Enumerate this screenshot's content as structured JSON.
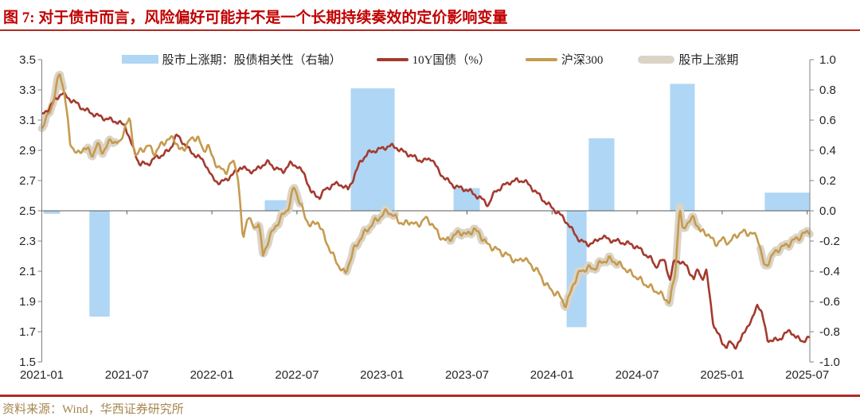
{
  "header": {
    "title": "图 7: 对于债市而言，风险偏好可能并不是一个长期持续奏效的定价影响变量"
  },
  "footer": {
    "source": "资料来源：Wind，华西证券研究所"
  },
  "colors": {
    "title_red": "#C00000",
    "rule_red": "#AE2B23",
    "bar_blue": "#AFD6F4",
    "bond_red": "#A43A2E",
    "csi_gold": "#C59B4F",
    "band_gray": "#DBD4C6",
    "source_gold": "#A6854F",
    "axis_line": "#808080",
    "zero_line": "#595959"
  },
  "chart_data": {
    "type": "mixed",
    "title": "",
    "x_axis": {
      "unit": "months since 2021-01",
      "tick_labels": [
        "2021-01",
        "2021-07",
        "2022-01",
        "2022-07",
        "2023-01",
        "2023-07",
        "2024-01",
        "2024-07",
        "2025-01",
        "2025-07"
      ],
      "tick_t": [
        0,
        6,
        12,
        18,
        24,
        30,
        36,
        42,
        48,
        54
      ],
      "t_max": 54.2,
      "grid": false
    },
    "left_axis": {
      "min": 1.5,
      "max": 3.5,
      "step": 0.2,
      "labels": [
        "3.5",
        "3.3",
        "3.1",
        "2.9",
        "2.7",
        "2.5",
        "2.3",
        "2.1",
        "1.9",
        "1.7",
        "1.5"
      ]
    },
    "right_axis": {
      "min": -1.0,
      "max": 1.0,
      "step": 0.2,
      "labels": [
        "1.0",
        "0.8",
        "0.6",
        "0.4",
        "0.2",
        "0.0",
        "-0.2",
        "-0.4",
        "-0.6",
        "-0.8",
        "-1.0"
      ]
    },
    "legend_position": "top-center",
    "series": [
      {
        "name": "股市上涨期：股债相关性（右轴）",
        "type": "bar",
        "axis": "right",
        "color": "#AFD6F4",
        "bars": [
          {
            "t0": 0.1,
            "t1": 1.3,
            "v": -0.02
          },
          {
            "t0": 3.33,
            "t1": 4.82,
            "v": -0.7
          },
          {
            "t0": 15.7,
            "t1": 17.44,
            "v": 0.07
          },
          {
            "t0": 21.77,
            "t1": 24.92,
            "v": 0.81
          },
          {
            "t0": 29.02,
            "t1": 30.93,
            "v": 0.15
          },
          {
            "t0": 37.0,
            "t1": 38.46,
            "v": -0.77
          },
          {
            "t0": 38.56,
            "t1": 40.42,
            "v": 0.48
          },
          {
            "t0": 44.3,
            "t1": 46.1,
            "v": 0.84
          },
          {
            "t0": 50.98,
            "t1": 54.18,
            "v": 0.12
          }
        ]
      },
      {
        "name": "10Y国债（%）",
        "type": "line",
        "axis": "left",
        "color": "#A43A2E",
        "points": [
          [
            0,
            3.13
          ],
          [
            0.5,
            3.18
          ],
          [
            1,
            3.24
          ],
          [
            1.4,
            3.28
          ],
          [
            1.8,
            3.25
          ],
          [
            2.3,
            3.22
          ],
          [
            3,
            3.17
          ],
          [
            3.9,
            3.13
          ],
          [
            4.5,
            3.11
          ],
          [
            5.3,
            3.09
          ],
          [
            5.9,
            3.06
          ],
          [
            6.4,
            2.92
          ],
          [
            6.9,
            2.81
          ],
          [
            7.5,
            2.81
          ],
          [
            8,
            2.85
          ],
          [
            8.5,
            2.87
          ],
          [
            9,
            2.9
          ],
          [
            9.5,
            3.0
          ],
          [
            10,
            2.95
          ],
          [
            10.5,
            2.89
          ],
          [
            11,
            2.86
          ],
          [
            11.5,
            2.82
          ],
          [
            12,
            2.72
          ],
          [
            12.6,
            2.68
          ],
          [
            13,
            2.71
          ],
          [
            13.5,
            2.74
          ],
          [
            14,
            2.79
          ],
          [
            14.5,
            2.77
          ],
          [
            15,
            2.76
          ],
          [
            15.5,
            2.8
          ],
          [
            16,
            2.82
          ],
          [
            16.5,
            2.78
          ],
          [
            17,
            2.76
          ],
          [
            17.5,
            2.81
          ],
          [
            18,
            2.8
          ],
          [
            18.6,
            2.73
          ],
          [
            19,
            2.62
          ],
          [
            19.6,
            2.59
          ],
          [
            20,
            2.64
          ],
          [
            20.5,
            2.67
          ],
          [
            21,
            2.68
          ],
          [
            21.6,
            2.64
          ],
          [
            22,
            2.72
          ],
          [
            22.5,
            2.83
          ],
          [
            23,
            2.88
          ],
          [
            23.5,
            2.9
          ],
          [
            24,
            2.91
          ],
          [
            24.5,
            2.93
          ],
          [
            25,
            2.92
          ],
          [
            25.5,
            2.89
          ],
          [
            26,
            2.87
          ],
          [
            26.5,
            2.84
          ],
          [
            27,
            2.83
          ],
          [
            27.5,
            2.85
          ],
          [
            28,
            2.76
          ],
          [
            28.5,
            2.71
          ],
          [
            29,
            2.67
          ],
          [
            29.5,
            2.65
          ],
          [
            30,
            2.64
          ],
          [
            30.5,
            2.61
          ],
          [
            31,
            2.58
          ],
          [
            31.5,
            2.54
          ],
          [
            32,
            2.63
          ],
          [
            32.5,
            2.66
          ],
          [
            33,
            2.69
          ],
          [
            33.5,
            2.7
          ],
          [
            34,
            2.7
          ],
          [
            34.5,
            2.66
          ],
          [
            35,
            2.61
          ],
          [
            35.5,
            2.56
          ],
          [
            36,
            2.52
          ],
          [
            36.5,
            2.48
          ],
          [
            37,
            2.43
          ],
          [
            37.5,
            2.36
          ],
          [
            38,
            2.3
          ],
          [
            38.5,
            2.28
          ],
          [
            39,
            2.29
          ],
          [
            39.5,
            2.33
          ],
          [
            40,
            2.31
          ],
          [
            40.5,
            2.3
          ],
          [
            41,
            2.29
          ],
          [
            41.5,
            2.28
          ],
          [
            42,
            2.26
          ],
          [
            42.5,
            2.22
          ],
          [
            43,
            2.18
          ],
          [
            43.3,
            2.13
          ],
          [
            43.7,
            2.17
          ],
          [
            44,
            2.16
          ],
          [
            44.3,
            2.04
          ],
          [
            44.6,
            2.16
          ],
          [
            45,
            2.17
          ],
          [
            45.5,
            2.13
          ],
          [
            46,
            2.05
          ],
          [
            46.3,
            2.11
          ],
          [
            46.6,
            2.05
          ],
          [
            46.9,
            2.1
          ],
          [
            47.1,
            1.95
          ],
          [
            47.4,
            1.74
          ],
          [
            48,
            1.63
          ],
          [
            48.3,
            1.6
          ],
          [
            48.6,
            1.63
          ],
          [
            48.9,
            1.6
          ],
          [
            49.3,
            1.64
          ],
          [
            49.7,
            1.73
          ],
          [
            50.1,
            1.77
          ],
          [
            50.5,
            1.89
          ],
          [
            50.8,
            1.82
          ],
          [
            51.2,
            1.65
          ],
          [
            51.6,
            1.64
          ],
          [
            52,
            1.65
          ],
          [
            52.4,
            1.68
          ],
          [
            52.8,
            1.71
          ],
          [
            53.2,
            1.66
          ],
          [
            53.7,
            1.64
          ],
          [
            54.2,
            1.66
          ]
        ]
      },
      {
        "name": "沪深300",
        "type": "line",
        "axis": "left",
        "color": "#C59B4F",
        "points": [
          [
            0,
            3.05
          ],
          [
            0.4,
            3.12
          ],
          [
            0.8,
            3.22
          ],
          [
            1.26,
            3.42
          ],
          [
            1.6,
            3.28
          ],
          [
            2,
            2.95
          ],
          [
            2.5,
            2.87
          ],
          [
            3,
            2.92
          ],
          [
            3.6,
            2.87
          ],
          [
            3.9,
            2.94
          ],
          [
            4.3,
            2.89
          ],
          [
            4.9,
            2.97
          ],
          [
            5.5,
            2.94
          ],
          [
            5.9,
            3.07
          ],
          [
            6.2,
            3.1
          ],
          [
            6.6,
            2.86
          ],
          [
            7,
            2.9
          ],
          [
            7.5,
            2.93
          ],
          [
            8,
            2.88
          ],
          [
            8.5,
            2.95
          ],
          [
            9,
            2.97
          ],
          [
            9.3,
            2.99
          ],
          [
            9.7,
            2.9
          ],
          [
            10,
            2.91
          ],
          [
            10.5,
            2.97
          ],
          [
            11,
            2.99
          ],
          [
            11.4,
            2.89
          ],
          [
            11.7,
            2.94
          ],
          [
            12,
            2.86
          ],
          [
            12.5,
            2.78
          ],
          [
            13,
            2.76
          ],
          [
            13.5,
            2.83
          ],
          [
            13.8,
            2.76
          ],
          [
            14.2,
            2.3
          ],
          [
            14.5,
            2.47
          ],
          [
            15,
            2.38
          ],
          [
            15.3,
            2.43
          ],
          [
            15.6,
            2.2
          ],
          [
            16,
            2.31
          ],
          [
            16.5,
            2.4
          ],
          [
            17,
            2.47
          ],
          [
            17.4,
            2.52
          ],
          [
            17.8,
            2.66
          ],
          [
            18.2,
            2.56
          ],
          [
            18.6,
            2.45
          ],
          [
            19,
            2.4
          ],
          [
            19.5,
            2.43
          ],
          [
            20,
            2.31
          ],
          [
            20.5,
            2.21
          ],
          [
            21,
            2.13
          ],
          [
            21.4,
            2.08
          ],
          [
            22,
            2.24
          ],
          [
            22.5,
            2.32
          ],
          [
            23,
            2.38
          ],
          [
            23.5,
            2.43
          ],
          [
            24,
            2.47
          ],
          [
            24.4,
            2.5
          ],
          [
            25,
            2.45
          ],
          [
            25.5,
            2.41
          ],
          [
            26,
            2.43
          ],
          [
            26.5,
            2.4
          ],
          [
            27,
            2.45
          ],
          [
            27.5,
            2.42
          ],
          [
            28,
            2.34
          ],
          [
            28.5,
            2.3
          ],
          [
            29,
            2.33
          ],
          [
            29.5,
            2.36
          ],
          [
            30,
            2.34
          ],
          [
            30.5,
            2.38
          ],
          [
            31,
            2.33
          ],
          [
            31.5,
            2.27
          ],
          [
            32,
            2.25
          ],
          [
            32.5,
            2.22
          ],
          [
            33,
            2.2
          ],
          [
            33.5,
            2.16
          ],
          [
            34,
            2.19
          ],
          [
            34.5,
            2.14
          ],
          [
            35,
            2.1
          ],
          [
            35.5,
            2.02
          ],
          [
            36,
            1.97
          ],
          [
            36.5,
            1.94
          ],
          [
            37,
            1.87
          ],
          [
            37.5,
            2.02
          ],
          [
            38,
            2.1
          ],
          [
            38.5,
            2.12
          ],
          [
            39,
            2.12
          ],
          [
            39.5,
            2.16
          ],
          [
            40,
            2.18
          ],
          [
            40.5,
            2.16
          ],
          [
            41,
            2.13
          ],
          [
            41.5,
            2.09
          ],
          [
            42,
            2.06
          ],
          [
            42.5,
            2.02
          ],
          [
            43,
            1.99
          ],
          [
            43.5,
            1.96
          ],
          [
            44,
            1.92
          ],
          [
            44.3,
            1.89
          ],
          [
            44.7,
            2.1
          ],
          [
            45,
            2.53
          ],
          [
            45.2,
            2.37
          ],
          [
            45.5,
            2.42
          ],
          [
            46,
            2.45
          ],
          [
            46.5,
            2.36
          ],
          [
            47,
            2.35
          ],
          [
            47.5,
            2.28
          ],
          [
            48,
            2.31
          ],
          [
            48.5,
            2.29
          ],
          [
            49,
            2.34
          ],
          [
            49.5,
            2.36
          ],
          [
            50,
            2.35
          ],
          [
            50.5,
            2.33
          ],
          [
            51,
            2.12
          ],
          [
            51.5,
            2.2
          ],
          [
            52,
            2.25
          ],
          [
            52.5,
            2.27
          ],
          [
            53,
            2.3
          ],
          [
            53.5,
            2.33
          ],
          [
            54,
            2.36
          ],
          [
            54.2,
            2.37
          ]
        ]
      },
      {
        "name": "股市上涨期",
        "type": "band",
        "color": "#DBD4C6",
        "segments": [
          [
            0,
            1.5
          ],
          [
            3.1,
            5.2
          ],
          [
            15.1,
            18.2
          ],
          [
            21.5,
            24.92
          ],
          [
            28.8,
            31.2
          ],
          [
            36.8,
            40.6
          ],
          [
            44.2,
            46.3
          ],
          [
            50.7,
            54.18
          ]
        ]
      }
    ]
  }
}
